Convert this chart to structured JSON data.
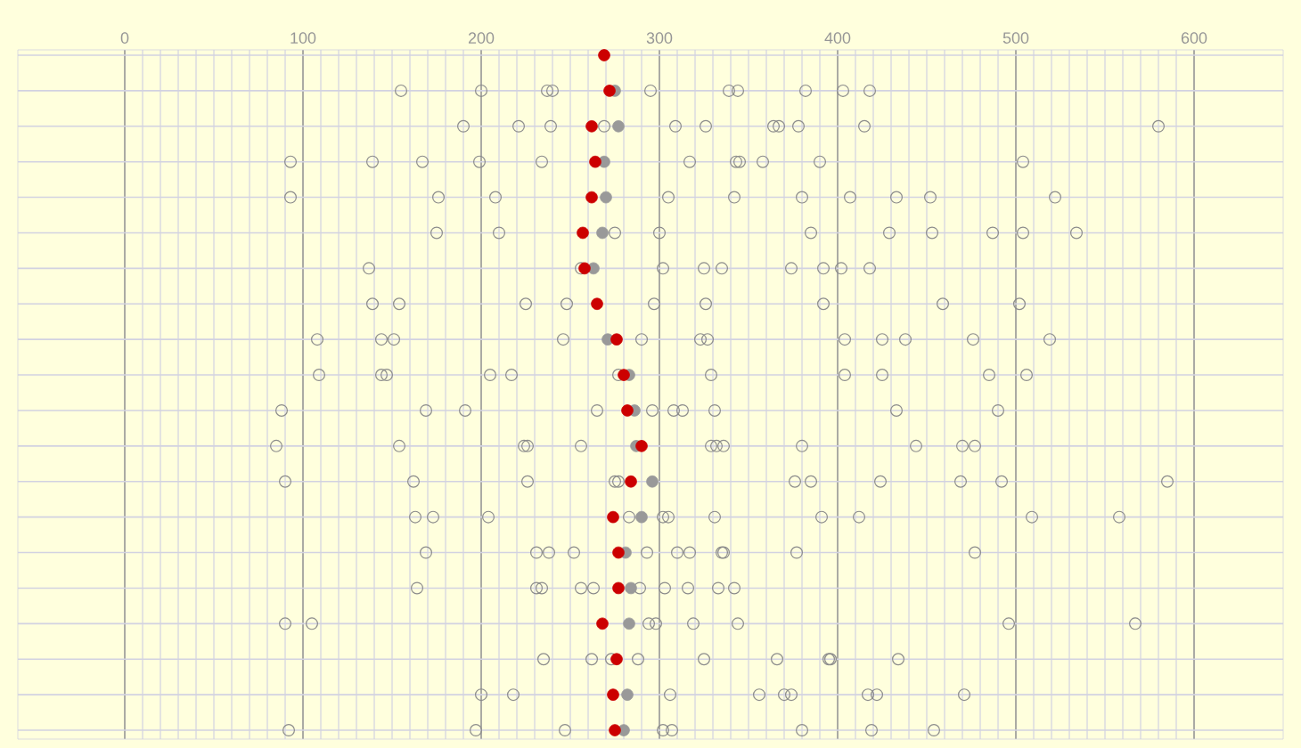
{
  "chart_data": {
    "type": "scatter",
    "orientation": "horizontal",
    "categories": [
      null,
      null,
      null,
      null,
      null,
      null,
      null,
      null,
      null,
      null,
      null,
      null,
      null,
      null,
      null,
      null,
      null,
      null,
      null,
      null
    ],
    "xlim": [
      -60,
      650
    ],
    "xticks": [
      0,
      100,
      200,
      300,
      400,
      500,
      600
    ],
    "grid": true,
    "marker": "circle",
    "series": [
      {
        "color": "#8c8c8c",
        "marker": "circle",
        "values": [
          null,
          155,
          190,
          93,
          93,
          175,
          137,
          139,
          108,
          109,
          88,
          85,
          90,
          163,
          169,
          164,
          90,
          235,
          200,
          92
        ]
      },
      {
        "color": "#8c8c8c",
        "marker": "circle",
        "values": [
          null,
          200,
          221,
          139,
          176,
          210,
          256,
          154,
          144,
          144,
          169,
          154,
          162,
          173,
          231,
          231,
          105,
          262,
          218,
          197
        ]
      },
      {
        "color": "#8c8c8c",
        "marker": "circle",
        "values": [
          null,
          237,
          239,
          167,
          208,
          275,
          302,
          225,
          151,
          147,
          191,
          224,
          226,
          204,
          238,
          234,
          294,
          273,
          306,
          247
        ]
      },
      {
        "color": "#8c8c8c",
        "marker": "circle",
        "values": [
          null,
          240,
          269,
          199,
          305,
          300,
          325,
          248,
          246,
          205,
          265,
          226,
          275,
          283,
          252,
          256,
          298,
          288,
          356,
          302
        ]
      },
      {
        "color": "#8c8c8c",
        "marker": "circle",
        "values": [
          null,
          295,
          309,
          234,
          342,
          385,
          335,
          297,
          290,
          217,
          296,
          256,
          277,
          302,
          293,
          263,
          319,
          325,
          370,
          307
        ]
      },
      {
        "color": "#8c8c8c",
        "marker": "circle",
        "values": [
          null,
          339,
          326,
          317,
          380,
          429,
          374,
          326,
          323,
          277,
          308,
          329,
          376,
          305,
          310,
          289,
          344,
          366,
          374,
          380
        ]
      },
      {
        "color": "#8c8c8c",
        "marker": "circle",
        "values": [
          null,
          344,
          364,
          343,
          407,
          453,
          392,
          392,
          327,
          329,
          313,
          332,
          385,
          331,
          317,
          303,
          496,
          395,
          417,
          419
        ]
      },
      {
        "color": "#8c8c8c",
        "marker": "circle",
        "values": [
          null,
          382,
          367,
          345,
          433,
          487,
          402,
          459,
          404,
          404,
          331,
          336,
          424,
          391,
          335,
          316,
          567,
          396,
          422,
          454
        ]
      },
      {
        "color": "#8c8c8c",
        "marker": "circle",
        "values": [
          null,
          403,
          378,
          358,
          452,
          504,
          418,
          502,
          425,
          425,
          433,
          380,
          469,
          412,
          336,
          333,
          null,
          434,
          471,
          null
        ]
      },
      {
        "color": "#8c8c8c",
        "marker": "circle",
        "values": [
          null,
          418,
          415,
          390,
          522,
          534,
          null,
          null,
          438,
          485,
          490,
          444,
          492,
          509,
          377,
          342,
          null,
          null,
          null,
          null
        ]
      },
      {
        "color": "#8c8c8c",
        "marker": "circle",
        "values": [
          null,
          null,
          580,
          504,
          null,
          null,
          null,
          null,
          476,
          506,
          null,
          470,
          585,
          558,
          477,
          null,
          null,
          null,
          null,
          null
        ]
      },
      {
        "color": "#8c8c8c",
        "marker": "circle",
        "values": [
          null,
          null,
          null,
          null,
          null,
          null,
          null,
          null,
          519,
          null,
          null,
          477,
          null,
          null,
          null,
          null,
          null,
          null,
          null,
          null
        ]
      },
      {
        "color": "#999999",
        "values": [
          null,
          275,
          277,
          269,
          270,
          268,
          263,
          null,
          271,
          283,
          286,
          287,
          296,
          290,
          281,
          284,
          283,
          null,
          282,
          280
        ]
      },
      {
        "color": "#cc0000",
        "values": [
          269,
          272,
          262,
          264,
          262,
          257,
          258,
          265,
          276,
          280,
          282,
          290,
          284,
          274,
          277,
          277,
          268,
          276,
          274,
          275
        ]
      }
    ]
  }
}
